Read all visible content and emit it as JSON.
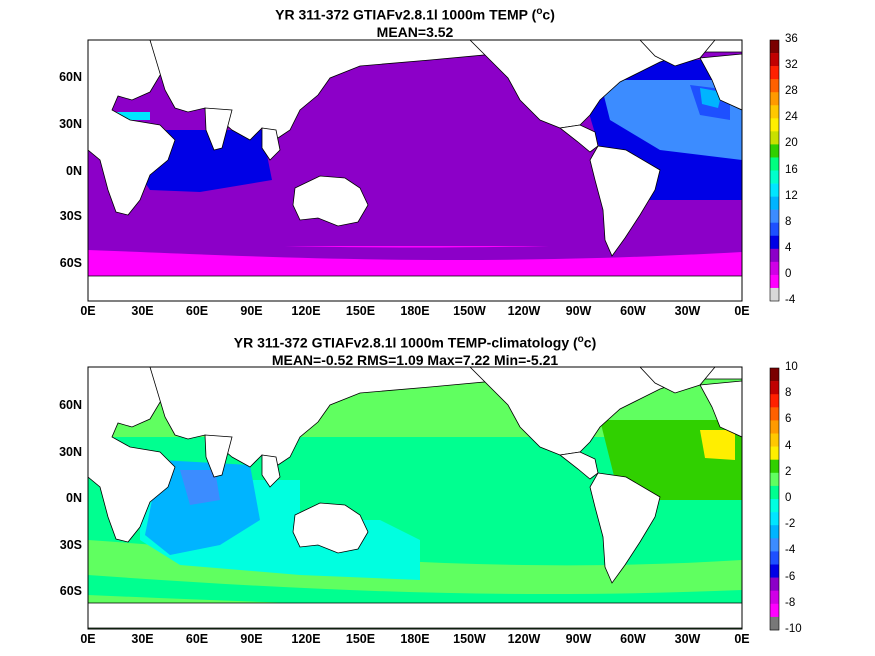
{
  "panels": [
    {
      "title_line1_pre": "YR 311-372 GTIAFv2.8.1l 1000m TEMP (",
      "title_sup": "o",
      "title_line1_post": "c)",
      "title_line2": "MEAN=3.52",
      "colorbar_labels": [
        "36",
        "32",
        "28",
        "24",
        "20",
        "16",
        "12",
        "8",
        "4",
        "0",
        "-4"
      ],
      "colorbar_colors": [
        "#7a0000",
        "#c00000",
        "#ff2000",
        "#ff6000",
        "#ff9a00",
        "#ffc800",
        "#ffee00",
        "#c8e000",
        "#30d000",
        "#00ff80",
        "#00ffcc",
        "#00e6ff",
        "#00b4ff",
        "#3c8cff",
        "#1e50ff",
        "#0000e6",
        "#8c00c8",
        "#d000e6",
        "#ff00ff",
        "#d8d8d8"
      ]
    },
    {
      "title_line1_pre": "YR 311-372 GTIAFv2.8.1l 1000m TEMP-climatology (",
      "title_sup": "o",
      "title_line1_post": "c)",
      "title_line2": "MEAN=-0.52   RMS=1.09   Max=7.22   Min=-5.21",
      "colorbar_labels": [
        "10",
        "8",
        "6",
        "4",
        "2",
        "0",
        "-2",
        "-4",
        "-6",
        "-8",
        "-10"
      ],
      "colorbar_colors": [
        "#7a0000",
        "#c00000",
        "#ff2000",
        "#ff6000",
        "#ff9a00",
        "#ffc800",
        "#ffee00",
        "#30d000",
        "#60ff60",
        "#00ff90",
        "#00ffe0",
        "#00e6ff",
        "#00b4ff",
        "#3c8cff",
        "#1e50ff",
        "#0000e6",
        "#8c00c8",
        "#d000e6",
        "#ff00ff",
        "#787878"
      ]
    }
  ],
  "x_ticks": [
    "0E",
    "30E",
    "60E",
    "90E",
    "120E",
    "150E",
    "180E",
    "150W",
    "120W",
    "90W",
    "60W",
    "30W",
    "0E"
  ],
  "y_ticks": [
    "60N",
    "30N",
    "0N",
    "30S",
    "60S"
  ]
}
